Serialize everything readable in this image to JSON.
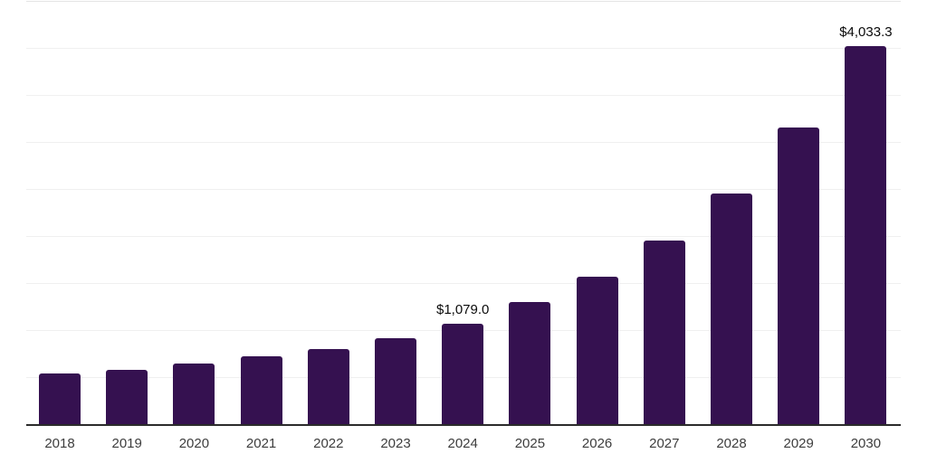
{
  "chart_data": {
    "type": "bar",
    "categories": [
      "2018",
      "2019",
      "2020",
      "2021",
      "2022",
      "2023",
      "2024",
      "2025",
      "2026",
      "2027",
      "2028",
      "2029",
      "2030"
    ],
    "values": [
      550,
      590,
      650,
      730,
      810,
      920,
      1079.0,
      1305,
      1580,
      1960,
      2460,
      3160,
      4033.3
    ],
    "value_labels": [
      "",
      "",
      "",
      "",
      "",
      "",
      "$1,079.0",
      "",
      "",
      "",
      "",
      "",
      "$4,033.3"
    ],
    "title": "",
    "xlabel": "",
    "ylabel": "",
    "ylim": [
      0,
      4500
    ],
    "gridline_step": 500,
    "grid": "horizontal",
    "legend_position": "none",
    "bar_color": "#351150",
    "axis_line_color": "#2b2b2b",
    "value_label_color": "#0b0b0b",
    "tick_label_color": "#3d3d3d"
  }
}
